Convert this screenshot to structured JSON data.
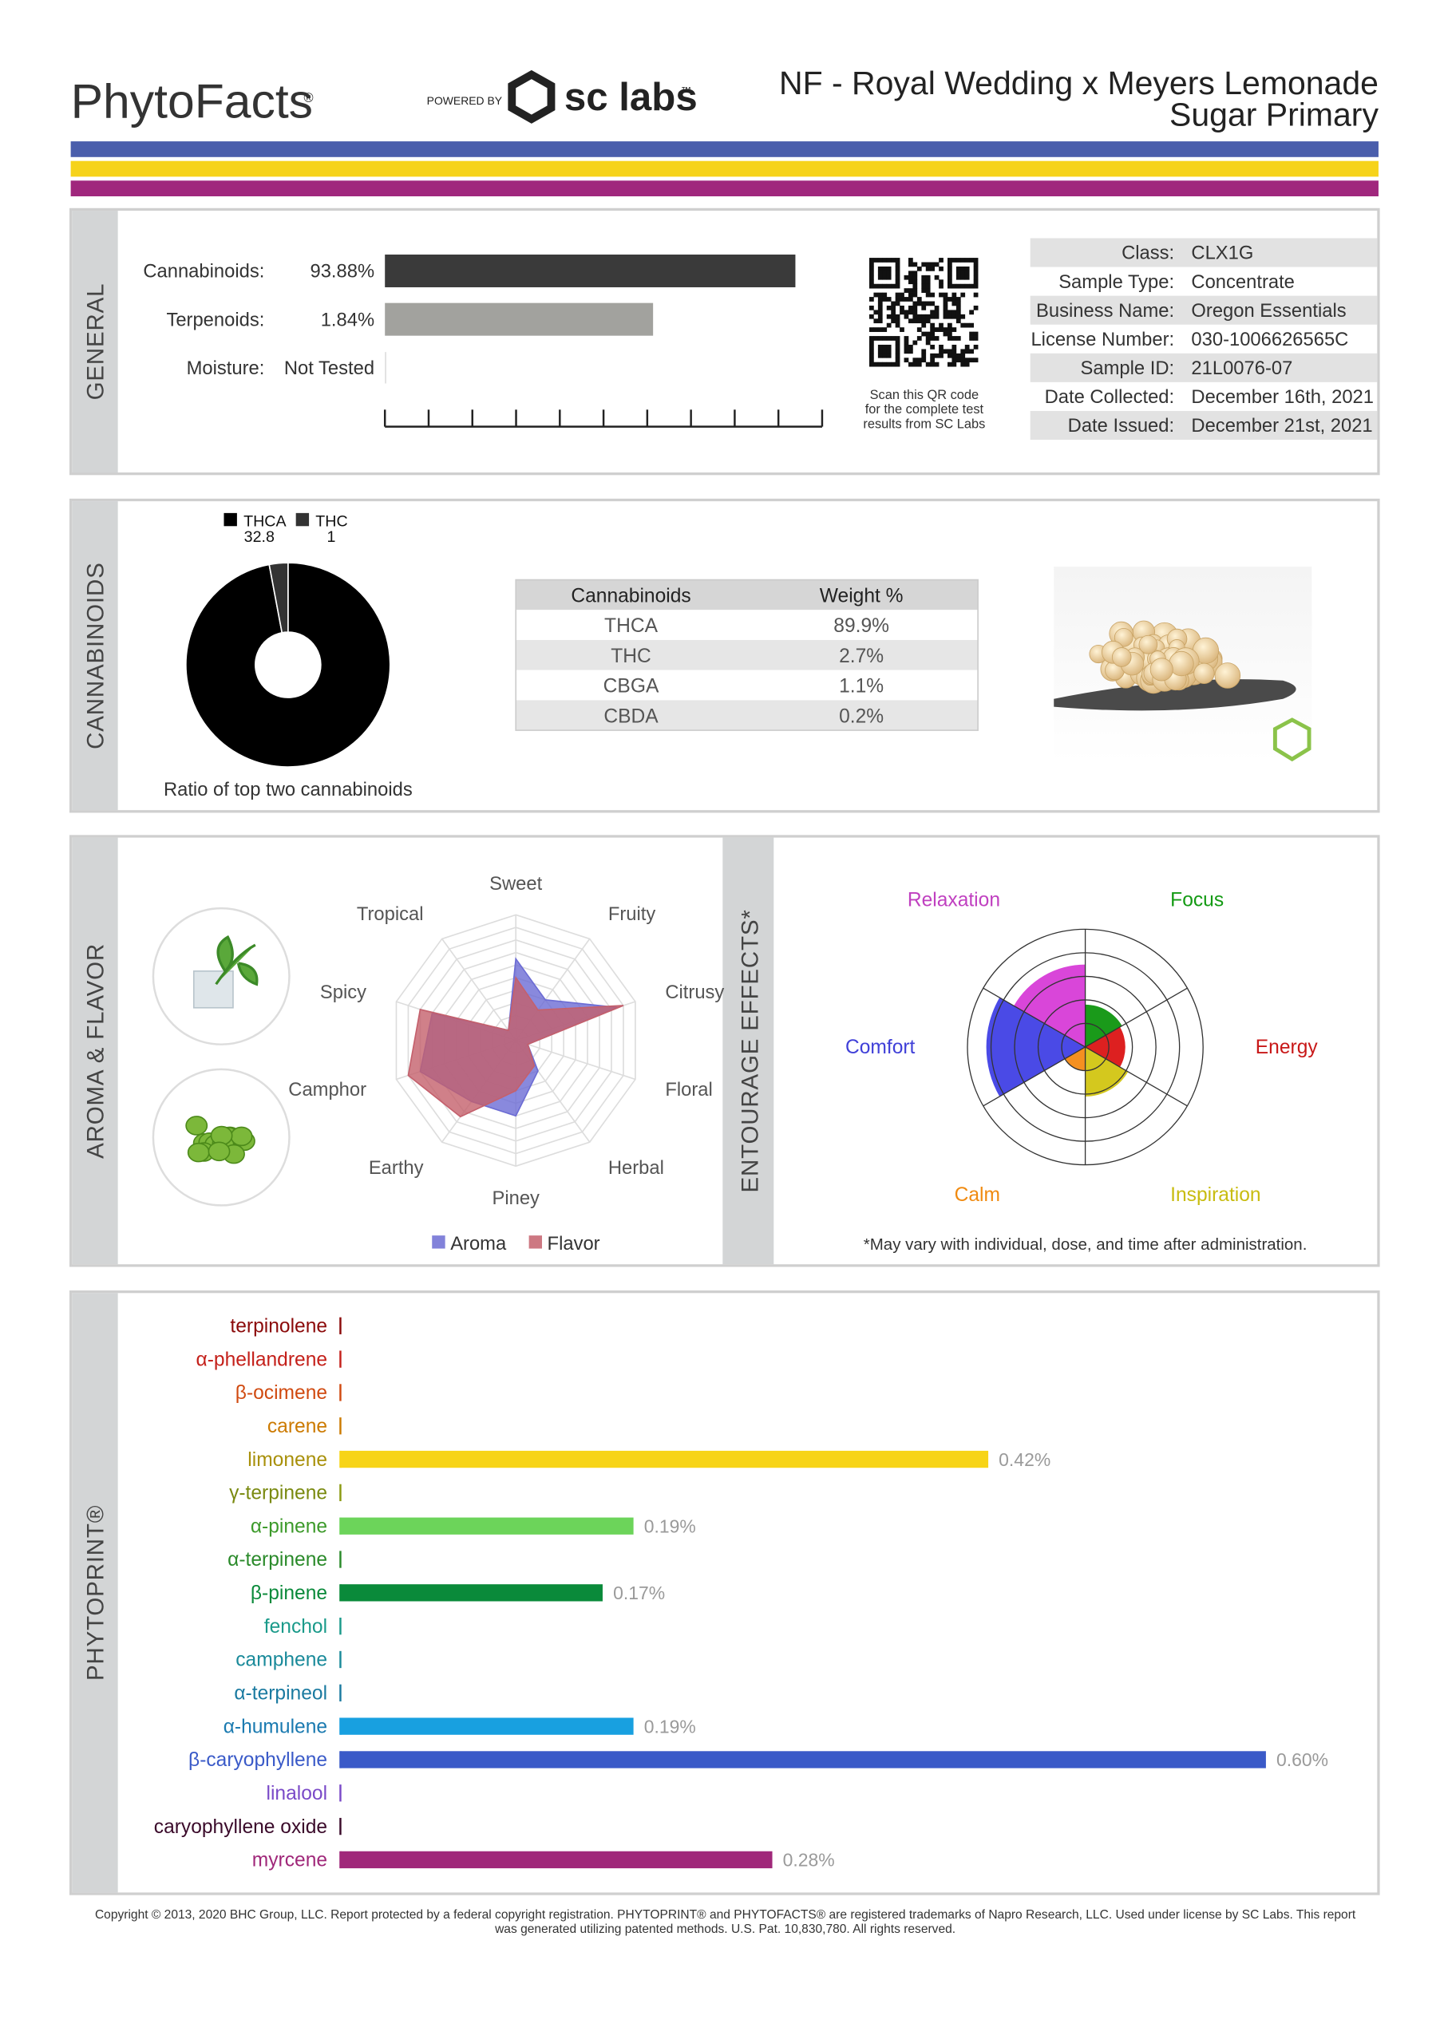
{
  "header": {
    "logo": "PhytoFacts",
    "logo_mark": "®",
    "powered_by": "POWERED BY",
    "lab_name": "sc labs",
    "lab_mark": "™",
    "title_line1": "NF - Royal Wedding x Meyers Lemonade",
    "title_line2": "Sugar Primary"
  },
  "general": {
    "section": "GENERAL",
    "bars": [
      {
        "label": "Cannabinoids:",
        "value": 93.88,
        "value_label": "93.88%",
        "xlim": [
          0,
          100
        ],
        "color": "#3a3a3a"
      },
      {
        "label": "Terpenoids:",
        "value": 1.84,
        "value_label": "1.84%",
        "xlim": [
          0,
          3
        ],
        "color": "#a2a29e"
      },
      {
        "label": "Moisture:",
        "value": null,
        "value_label": "Not Tested",
        "xlim": [
          0,
          100
        ],
        "color": "#a2a29e"
      }
    ],
    "qr_note": [
      "Scan this QR code",
      "for the complete test",
      "results from SC Labs"
    ],
    "info": [
      {
        "label": "Class:",
        "value": "CLX1G"
      },
      {
        "label": "Sample Type:",
        "value": "Concentrate"
      },
      {
        "label": "Business Name:",
        "value": "Oregon Essentials"
      },
      {
        "label": "License Number:",
        "value": "030-1006626565C"
      },
      {
        "label": "Sample ID:",
        "value": "21L0076-07"
      },
      {
        "label": "Date Collected:",
        "value": "December 16th, 2021"
      },
      {
        "label": "Date Issued:",
        "value": "December 21st, 2021"
      }
    ]
  },
  "cannabinoids": {
    "section": "CANNABINOIDS",
    "chart": {
      "type": "pie",
      "categories": [
        "THCA",
        "THC"
      ],
      "values": [
        32.8,
        1.0
      ],
      "colors": [
        "#000000",
        "#333333"
      ],
      "caption": "Ratio of top two cannabinoids"
    },
    "table": {
      "header": [
        "Cannabinoids",
        "Weight %"
      ],
      "rows": [
        [
          "THCA",
          "89.9%"
        ],
        [
          "THC",
          "2.7%"
        ],
        [
          "CBGA",
          "1.1%"
        ],
        [
          "CBDA",
          "0.2%"
        ]
      ]
    }
  },
  "aroma": {
    "section": "AROMA & FLAVOR",
    "chart": {
      "type": "radar",
      "categories": [
        "Sweet",
        "Fruity",
        "Citrusy",
        "Floral",
        "Herbal",
        "Piney",
        "Earthy",
        "Camphor",
        "Spicy",
        "Tropical"
      ],
      "rlim": [
        0,
        10
      ],
      "rticks": [
        1,
        2,
        3,
        4,
        5,
        6,
        7,
        8,
        9,
        10
      ],
      "series": [
        {
          "name": "Aroma",
          "color": "#6c6cd4",
          "values": [
            6.5,
            4,
            8.5,
            1,
            3,
            6,
            6,
            8,
            7,
            1
          ]
        },
        {
          "name": "Flavor",
          "color": "#c4606c",
          "values": [
            5,
            3,
            9,
            1,
            2.5,
            4,
            7.5,
            9,
            8,
            1
          ]
        }
      ]
    }
  },
  "entourage": {
    "section": "ENTOURAGE EFFECTS*",
    "chart": {
      "type": "polar",
      "categories": [
        "Focus",
        "Energy",
        "Inspiration",
        "Calm",
        "Comfort",
        "Relaxation"
      ],
      "values": [
        1.8,
        1.7,
        2.1,
        1,
        4.2,
        3.5
      ],
      "colors": [
        "#1a9a1a",
        "#dd2020",
        "#d4c81e",
        "#f59020",
        "#4a4ae6",
        "#d946d9"
      ],
      "label_colors": [
        "#139a13",
        "#c81818",
        "#c8bc10",
        "#f08a10",
        "#4040d8",
        "#c040c0"
      ],
      "rlim": [
        0,
        5
      ],
      "rticks": [
        1,
        2,
        3,
        4,
        5
      ]
    },
    "note": "*May vary with individual, dose, and time after administration."
  },
  "phytoprint": {
    "section": "PHYTOPRINT®",
    "chart": {
      "type": "bar",
      "orientation": "horizontal",
      "categories": [
        "terpinolene",
        "α-phellandrene",
        "β-ocimene",
        "carene",
        "limonene",
        "γ-terpinene",
        "α-pinene",
        "α-terpinene",
        "β-pinene",
        "fenchol",
        "camphene",
        "α-terpineol",
        "α-humulene",
        "β-caryophyllene",
        "linalool",
        "caryophyllene oxide",
        "myrcene"
      ],
      "values": [
        0,
        0,
        0,
        0,
        0.42,
        0,
        0.19,
        0,
        0.17,
        0,
        0,
        0,
        0.19,
        0.6,
        0,
        0,
        0.28
      ],
      "value_labels": [
        null,
        null,
        null,
        null,
        "0.42%",
        null,
        "0.19%",
        null,
        "0.17%",
        null,
        null,
        null,
        "0.19%",
        "0.60%",
        null,
        null,
        "0.28%"
      ],
      "colors": [
        "#8b0a0a",
        "#c4201a",
        "#d04a10",
        "#cc7a00",
        "#f7d417",
        "#8a9a10",
        "#6cd45a",
        "#2a8a2a",
        "#0a8a3a",
        "#1a9a8a",
        "#1a8a9a",
        "#1a7aa0",
        "#18a0e0",
        "#3a5ac8",
        "#7a4ac8",
        "#3a0a2a",
        "#a0287a"
      ],
      "label_colors": [
        "#8b0a0a",
        "#c4201a",
        "#d04a10",
        "#cc7a00",
        "#a8900a",
        "#7a8a10",
        "#3c9a2a",
        "#2a8a2a",
        "#0a8a3a",
        "#1a9a8a",
        "#1a8a9a",
        "#1a7aa0",
        "#1a7ab0",
        "#3a5ac8",
        "#7a4ac8",
        "#3a0a2a",
        "#a0287a"
      ],
      "xlim": [
        0,
        0.6
      ]
    }
  },
  "footer": {
    "line1": "Copyright © 2013, 2020 BHC Group, LLC. Report protected by a federal copyright registration. PHYTOPRINT® and PHYTOFACTS® are registered trademarks of Napro Research, LLC. Used under license by SC Labs. This report",
    "line2": "was generated utilizing patented methods. U.S. Pat. 10,830,780. All rights reserved."
  }
}
